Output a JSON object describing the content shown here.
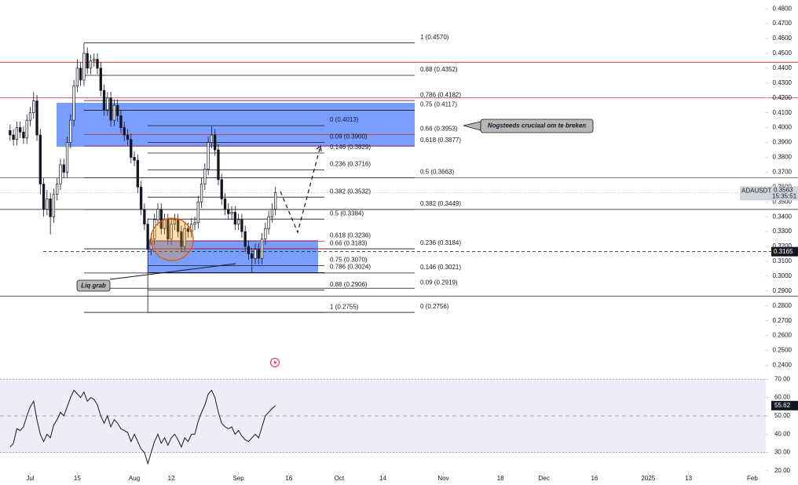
{
  "chart_data": {
    "type": "candlestick",
    "symbol": "ADAUSDT",
    "x": [
      "2024-06-25",
      "2024-06-26",
      "2024-06-27",
      "2024-06-28",
      "2024-06-29",
      "2024-06-30",
      "2024-07-01",
      "2024-07-02",
      "2024-07-03",
      "2024-07-04",
      "2024-07-05",
      "2024-07-06",
      "2024-07-07",
      "2024-07-08",
      "2024-07-09",
      "2024-07-10",
      "2024-07-11",
      "2024-07-12",
      "2024-07-13",
      "2024-07-14",
      "2024-07-15",
      "2024-07-16",
      "2024-07-17",
      "2024-07-18",
      "2024-07-19",
      "2024-07-20",
      "2024-07-21",
      "2024-07-22",
      "2024-07-23",
      "2024-07-24",
      "2024-07-25",
      "2024-07-26",
      "2024-07-27",
      "2024-07-28",
      "2024-07-29",
      "2024-07-30",
      "2024-07-31",
      "2024-08-01",
      "2024-08-02",
      "2024-08-03",
      "2024-08-04",
      "2024-08-05",
      "2024-08-06",
      "2024-08-07",
      "2024-08-08",
      "2024-08-09",
      "2024-08-10",
      "2024-08-11",
      "2024-08-12",
      "2024-08-13",
      "2024-08-14",
      "2024-08-15",
      "2024-08-16",
      "2024-08-17",
      "2024-08-18",
      "2024-08-19",
      "2024-08-20",
      "2024-08-21",
      "2024-08-22",
      "2024-08-23",
      "2024-08-24",
      "2024-08-25",
      "2024-08-26",
      "2024-08-27",
      "2024-08-28",
      "2024-08-29",
      "2024-08-30",
      "2024-08-31",
      "2024-09-01",
      "2024-09-02",
      "2024-09-03",
      "2024-09-04",
      "2024-09-05",
      "2024-09-06",
      "2024-09-07",
      "2024-09-08",
      "2024-09-09",
      "2024-09-10",
      "2024-09-11",
      "2024-09-12"
    ],
    "open": [
      0.398,
      0.395,
      0.392,
      0.4,
      0.397,
      0.393,
      0.405,
      0.41,
      0.418,
      0.395,
      0.362,
      0.345,
      0.352,
      0.34,
      0.355,
      0.362,
      0.375,
      0.37,
      0.39,
      0.405,
      0.428,
      0.44,
      0.432,
      0.45,
      0.44,
      0.445,
      0.446,
      0.44,
      0.425,
      0.412,
      0.42,
      0.405,
      0.415,
      0.408,
      0.4,
      0.395,
      0.392,
      0.38,
      0.378,
      0.36,
      0.345,
      0.335,
      0.318,
      0.325,
      0.338,
      0.345,
      0.332,
      0.338,
      0.325,
      0.335,
      0.338,
      0.33,
      0.32,
      0.332,
      0.33,
      0.335,
      0.336,
      0.35,
      0.362,
      0.372,
      0.39,
      0.395,
      0.385,
      0.365,
      0.352,
      0.345,
      0.342,
      0.343,
      0.335,
      0.338,
      0.33,
      0.32,
      0.315,
      0.312,
      0.318,
      0.312,
      0.325,
      0.332,
      0.34,
      0.345
    ],
    "high": [
      0.402,
      0.399,
      0.404,
      0.404,
      0.401,
      0.409,
      0.414,
      0.424,
      0.422,
      0.399,
      0.366,
      0.358,
      0.356,
      0.359,
      0.366,
      0.379,
      0.379,
      0.394,
      0.409,
      0.432,
      0.446,
      0.444,
      0.457,
      0.454,
      0.449,
      0.45,
      0.45,
      0.444,
      0.429,
      0.424,
      0.424,
      0.419,
      0.419,
      0.412,
      0.404,
      0.399,
      0.396,
      0.384,
      0.382,
      0.364,
      0.349,
      0.339,
      0.329,
      0.342,
      0.349,
      0.349,
      0.342,
      0.342,
      0.339,
      0.342,
      0.342,
      0.334,
      0.336,
      0.336,
      0.339,
      0.34,
      0.354,
      0.366,
      0.376,
      0.394,
      0.401,
      0.399,
      0.389,
      0.369,
      0.356,
      0.349,
      0.347,
      0.347,
      0.342,
      0.342,
      0.334,
      0.324,
      0.319,
      0.322,
      0.322,
      0.329,
      0.336,
      0.344,
      0.349,
      0.36
    ],
    "low": [
      0.391,
      0.388,
      0.388,
      0.393,
      0.389,
      0.389,
      0.401,
      0.406,
      0.391,
      0.355,
      0.34,
      0.341,
      0.328,
      0.336,
      0.351,
      0.358,
      0.366,
      0.366,
      0.386,
      0.401,
      0.424,
      0.428,
      0.428,
      0.436,
      0.436,
      0.441,
      0.436,
      0.421,
      0.408,
      0.408,
      0.401,
      0.401,
      0.404,
      0.396,
      0.391,
      0.388,
      0.376,
      0.374,
      0.356,
      0.341,
      0.331,
      0.2755,
      0.314,
      0.321,
      0.334,
      0.328,
      0.328,
      0.321,
      0.321,
      0.331,
      0.326,
      0.316,
      0.316,
      0.326,
      0.326,
      0.331,
      0.332,
      0.346,
      0.358,
      0.368,
      0.386,
      0.381,
      0.361,
      0.348,
      0.341,
      0.338,
      0.338,
      0.331,
      0.331,
      0.326,
      0.316,
      0.311,
      0.3021,
      0.308,
      0.308,
      0.308,
      0.321,
      0.328,
      0.336,
      0.341
    ],
    "close": [
      0.395,
      0.392,
      0.4,
      0.397,
      0.393,
      0.405,
      0.41,
      0.418,
      0.395,
      0.362,
      0.345,
      0.352,
      0.34,
      0.355,
      0.362,
      0.375,
      0.37,
      0.39,
      0.405,
      0.428,
      0.44,
      0.432,
      0.45,
      0.44,
      0.445,
      0.446,
      0.44,
      0.425,
      0.412,
      0.42,
      0.405,
      0.415,
      0.408,
      0.4,
      0.395,
      0.392,
      0.38,
      0.378,
      0.36,
      0.345,
      0.335,
      0.318,
      0.325,
      0.338,
      0.345,
      0.332,
      0.338,
      0.325,
      0.335,
      0.338,
      0.33,
      0.32,
      0.332,
      0.33,
      0.335,
      0.336,
      0.35,
      0.362,
      0.372,
      0.39,
      0.395,
      0.385,
      0.365,
      0.352,
      0.345,
      0.342,
      0.343,
      0.335,
      0.338,
      0.33,
      0.32,
      0.315,
      0.312,
      0.318,
      0.312,
      0.325,
      0.332,
      0.34,
      0.345,
      0.3563
    ],
    "xlim": [
      "2024-06-22",
      "2025-02-05"
    ],
    "xticks": [
      {
        "value": "2024-07-01",
        "label": "Jul"
      },
      {
        "value": "2024-07-15",
        "label": "15"
      },
      {
        "value": "2024-08-01",
        "label": "Aug"
      },
      {
        "value": "2024-08-12",
        "label": "12"
      },
      {
        "value": "2024-09-01",
        "label": "Sep"
      },
      {
        "value": "2024-09-16",
        "label": "16"
      },
      {
        "value": "2024-10-01",
        "label": "Oct"
      },
      {
        "value": "2024-10-14",
        "label": "14"
      },
      {
        "value": "2024-11-01",
        "label": "Nov"
      },
      {
        "value": "2024-11-18",
        "label": "18"
      },
      {
        "value": "2024-12-01",
        "label": "Dec"
      },
      {
        "value": "2024-12-16",
        "label": "16"
      },
      {
        "value": "2025-01-01",
        "label": "2025"
      },
      {
        "value": "2025-01-13",
        "label": "13"
      },
      {
        "value": "2025-02-01",
        "label": "Feb"
      }
    ],
    "ylim": [
      0.2376,
      0.4859
    ],
    "yticks": [
      {
        "value": 0.24,
        "label": "0.2400"
      },
      {
        "value": 0.25,
        "label": "0.2500"
      },
      {
        "value": 0.26,
        "label": "0.2600"
      },
      {
        "value": 0.27,
        "label": "0.2700"
      },
      {
        "value": 0.28,
        "label": "0.2800"
      },
      {
        "value": 0.29,
        "label": "0.2900"
      },
      {
        "value": 0.3,
        "label": "0.3000"
      },
      {
        "value": 0.31,
        "label": "0.3100"
      },
      {
        "value": 0.32,
        "label": "0.3200"
      },
      {
        "value": 0.33,
        "label": "0.3300"
      },
      {
        "value": 0.34,
        "label": "0.3400"
      },
      {
        "value": 0.35,
        "label": "0.3500"
      },
      {
        "value": 0.36,
        "label": "0.3600"
      },
      {
        "value": 0.37,
        "label": "0.3700"
      },
      {
        "value": 0.38,
        "label": "0.3800"
      },
      {
        "value": 0.39,
        "label": "0.3900"
      },
      {
        "value": 0.4,
        "label": "0.4000"
      },
      {
        "value": 0.41,
        "label": "0.4100"
      },
      {
        "value": 0.42,
        "label": "0.4200"
      },
      {
        "value": 0.43,
        "label": "0.4300"
      },
      {
        "value": 0.44,
        "label": "0.4400"
      },
      {
        "value": 0.45,
        "label": "0.4500"
      },
      {
        "value": 0.46,
        "label": "0.4600"
      },
      {
        "value": 0.47,
        "label": "0.4700"
      },
      {
        "value": 0.48,
        "label": "0.4800"
      }
    ],
    "up_color": "#ffffff",
    "down_color": "#131722",
    "last_price": {
      "value": 0.3563,
      "label": "0.3563",
      "time": "15:35:51"
    },
    "marker_price": {
      "value": 0.3165,
      "label": "0.3165"
    },
    "lines": [
      {
        "value": 0.444,
        "color": "#c62828"
      },
      {
        "value": 0.42,
        "color": "#c62828"
      },
      {
        "value": 0.3663,
        "color": "#555555"
      },
      {
        "value": 0.3449,
        "color": "#131722"
      },
      {
        "value": 0.2866,
        "color": "#131722"
      }
    ],
    "fib_sets": [
      {
        "levels": [
          {
            "label": "1 (0.4570)",
            "value": 0.457,
            "color": "#131722"
          },
          {
            "label": "0.88 (0.4352)",
            "value": 0.4352,
            "color": "#131722"
          },
          {
            "label": "0.786 (0.4182)",
            "value": 0.4182,
            "color": "#131722"
          },
          {
            "label": "0.75 (0.4117)",
            "value": 0.4117,
            "color": "#131722"
          },
          {
            "label": "0.66 (0.3953)",
            "value": 0.3953,
            "color": "#c62828"
          },
          {
            "label": "0.618 (0.3877)",
            "value": 0.3877,
            "color": "#c62828"
          },
          {
            "label": "0.5 (0.3663)",
            "value": 0.3663,
            "color": "#131722"
          },
          {
            "label": "0.382 (0.3449)",
            "value": 0.3449,
            "color": "#131722"
          },
          {
            "label": "0.236 (0.3184)",
            "value": 0.3184,
            "color": "#131722"
          },
          {
            "label": "0.146 (0.3021)",
            "value": 0.3021,
            "color": "#131722"
          },
          {
            "label": "0.09 (0.2919)",
            "value": 0.2919,
            "color": "#131722"
          },
          {
            "label": "0 (0.2756)",
            "value": 0.2756,
            "color": "#131722"
          }
        ]
      },
      {
        "levels": [
          {
            "label": "0 (0.4013)",
            "value": 0.4013,
            "color": "#131722"
          },
          {
            "label": "0.09 (0.3900)",
            "value": 0.39,
            "color": "#131722"
          },
          {
            "label": "0.146 (0.3829)",
            "value": 0.3829,
            "color": "#131722"
          },
          {
            "label": "0.236 (0.3716)",
            "value": 0.3716,
            "color": "#131722"
          },
          {
            "label": "0.382 (0.3532)",
            "value": 0.3532,
            "color": "#131722"
          },
          {
            "label": "0.5 (0.3384)",
            "value": 0.3384,
            "color": "#131722"
          },
          {
            "label": "0.618 (0.3236)",
            "value": 0.3236,
            "color": "#c62828"
          },
          {
            "label": "0.66 (0.3183)",
            "value": 0.3183,
            "color": "#c62828"
          },
          {
            "label": "0.75 (0.3070)",
            "value": 0.307,
            "color": "#131722"
          },
          {
            "label": "0.786 (0.3024)",
            "value": 0.3024,
            "color": "#131722"
          },
          {
            "label": "0.88 (0.2906)",
            "value": 0.2906,
            "color": "#131722"
          },
          {
            "label": "1 (0.2755)",
            "value": 0.2755,
            "color": "#131722"
          }
        ]
      }
    ],
    "annotations": [
      "Nogsteeds cruciaal om te breken",
      "Liq grab"
    ],
    "rsi": {
      "values": [
        33,
        35,
        43,
        42,
        44,
        50,
        55,
        58,
        48,
        40,
        36,
        40,
        38,
        45,
        48,
        52,
        50,
        55,
        60,
        64,
        62,
        60,
        63,
        58,
        60,
        59,
        56,
        50,
        46,
        50,
        44,
        48,
        46,
        43,
        42,
        41,
        36,
        40,
        36,
        32,
        30,
        24,
        30,
        36,
        40,
        35,
        38,
        34,
        38,
        40,
        37,
        33,
        38,
        36,
        40,
        40,
        47,
        52,
        56,
        62,
        64,
        60,
        52,
        46,
        44,
        43,
        44,
        40,
        42,
        39,
        37,
        36,
        38,
        40,
        38,
        44,
        50,
        52,
        54,
        55.62
      ],
      "color": "#131722",
      "last": {
        "value": 55.62,
        "label": "55.62"
      },
      "ylim": [
        19.1,
        75.7
      ],
      "band": [
        30,
        70
      ],
      "mid": 50,
      "yticks": [
        {
          "value": 20,
          "label": "20.00"
        },
        {
          "value": 30,
          "label": "30.00"
        },
        {
          "value": 40,
          "label": "40.00"
        },
        {
          "value": 50,
          "label": "50.00"
        },
        {
          "value": 60,
          "label": "60.00"
        },
        {
          "value": 70,
          "label": "70.00"
        }
      ]
    }
  }
}
